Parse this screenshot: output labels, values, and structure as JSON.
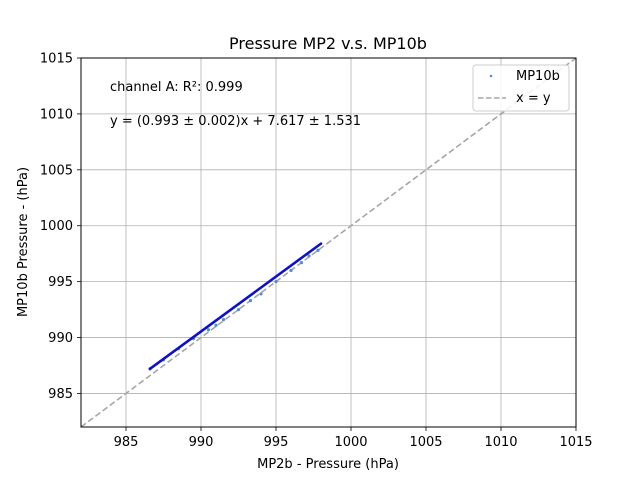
{
  "chart_data": {
    "type": "scatter",
    "title": "Pressure MP2 v.s. MP10b",
    "xlabel": "MP2b - Pressure (hPa)",
    "ylabel": "MP10b Pressure - (hPa)",
    "xlim": [
      982,
      1015
    ],
    "ylim": [
      982,
      1015
    ],
    "xticks": [
      985,
      990,
      995,
      1000,
      1005,
      1010,
      1015
    ],
    "yticks": [
      985,
      990,
      995,
      1000,
      1005,
      1010,
      1015
    ],
    "grid": true,
    "legend_position": "top-right",
    "annotations": [
      "channel A: R²: 0.999",
      "y = (0.993 ± 0.002)x + 7.617 ± 1.531"
    ],
    "series": [
      {
        "name": "MP10b",
        "kind": "scatter",
        "color": "#4a90d9",
        "x": [
          986.6,
          987.5,
          988.5,
          989.5,
          990.5,
          991.0,
          991.5,
          992.5,
          993.3,
          994.0,
          995.0,
          996.0,
          996.7,
          997.2,
          997.8
        ],
        "y": [
          987.2,
          988.0,
          989.0,
          989.9,
          990.7,
          991.1,
          991.6,
          992.5,
          993.3,
          993.9,
          995.0,
          996.0,
          996.7,
          997.3,
          997.8
        ]
      },
      {
        "name": "x = y",
        "kind": "line",
        "color": "#a6a6a6",
        "x": [
          982,
          1015
        ],
        "y": [
          982,
          1015
        ]
      }
    ],
    "fit_line": {
      "color": "#1010c8",
      "x": [
        986.6,
        998.0
      ],
      "y": [
        987.2,
        998.4
      ]
    }
  }
}
